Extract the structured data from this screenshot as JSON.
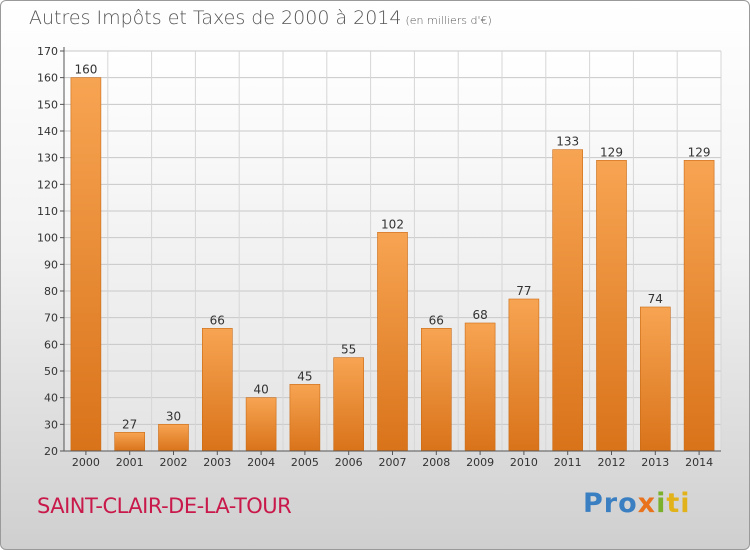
{
  "header": {
    "title": "Autres Impôts et Taxes de 2000 à 2014",
    "unit": "(en milliers d'€)"
  },
  "footer": {
    "commune": "SAINT-CLAIR-DE-LA-TOUR",
    "logo": "Proxiti"
  },
  "colors": {
    "bar": "#f0993f",
    "bar_dark": "#d9731a",
    "commune_text": "#c8194a"
  },
  "chart_data": {
    "type": "bar",
    "title": "Autres Impôts et Taxes de 2000 à 2014",
    "subtitle": "(en milliers d'€)",
    "categories": [
      "2000",
      "2001",
      "2002",
      "2003",
      "2004",
      "2005",
      "2006",
      "2007",
      "2008",
      "2009",
      "2010",
      "2011",
      "2012",
      "2013",
      "2014"
    ],
    "values": [
      160,
      27,
      30,
      66,
      40,
      45,
      55,
      102,
      66,
      68,
      77,
      133,
      129,
      74,
      129
    ],
    "ylim": [
      20,
      170
    ],
    "yticks": [
      20,
      30,
      40,
      50,
      60,
      70,
      80,
      90,
      100,
      110,
      120,
      130,
      140,
      150,
      160,
      170
    ],
    "grid": true,
    "xlabel": "",
    "ylabel": ""
  }
}
